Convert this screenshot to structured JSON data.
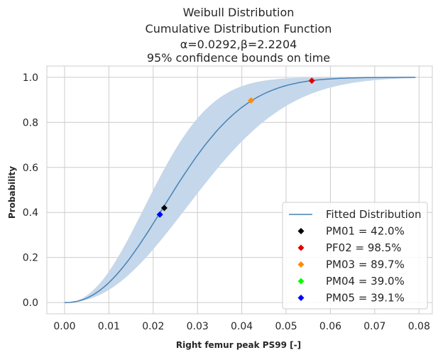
{
  "chart_data": {
    "type": "line",
    "title_lines": [
      "Weibull Distribution",
      "Cumulative Distribution Function",
      "α=0.0292,β=2.2204",
      "95% confidence bounds on time"
    ],
    "xlabel": "Right femur peak PS99 [-]",
    "ylabel": "Probability",
    "xlim": [
      -0.004,
      0.083
    ],
    "ylim": [
      -0.05,
      1.05
    ],
    "xticks": [
      0.0,
      0.01,
      0.02,
      0.03,
      0.04,
      0.05,
      0.06,
      0.07,
      0.08
    ],
    "xtick_labels": [
      "0.00",
      "0.01",
      "0.02",
      "0.03",
      "0.04",
      "0.05",
      "0.06",
      "0.07",
      "0.08"
    ],
    "yticks": [
      0.0,
      0.2,
      0.4,
      0.6,
      0.8,
      1.0
    ],
    "ytick_labels": [
      "0.0",
      "0.2",
      "0.4",
      "0.6",
      "0.8",
      "1.0"
    ],
    "grid": true,
    "legend_position": "lower-right",
    "fitted": {
      "name": "Fitted Distribution",
      "alpha": 0.0292,
      "beta": 2.2204,
      "x_max": 0.0792,
      "color": "#4682b4"
    },
    "confidence_band": {
      "level": 0.95,
      "color": "#c5d7ea",
      "lower_scale": 0.0236,
      "upper_scale": 0.0361
    },
    "points": [
      {
        "label": "PM01 = 42.0%",
        "x": 0.0225,
        "y": 0.42,
        "color": "#000000"
      },
      {
        "label": "PF02 = 98.5%",
        "x": 0.0558,
        "y": 0.985,
        "color": "#e00000"
      },
      {
        "label": "PM03 = 89.7%",
        "x": 0.0421,
        "y": 0.897,
        "color": "#ff8c00"
      },
      {
        "label": "PM04 = 39.0%",
        "x": 0.0215,
        "y": 0.39,
        "color": "#00ff00"
      },
      {
        "label": "PM05 = 39.1%",
        "x": 0.0215,
        "y": 0.391,
        "color": "#0000ff"
      }
    ]
  }
}
